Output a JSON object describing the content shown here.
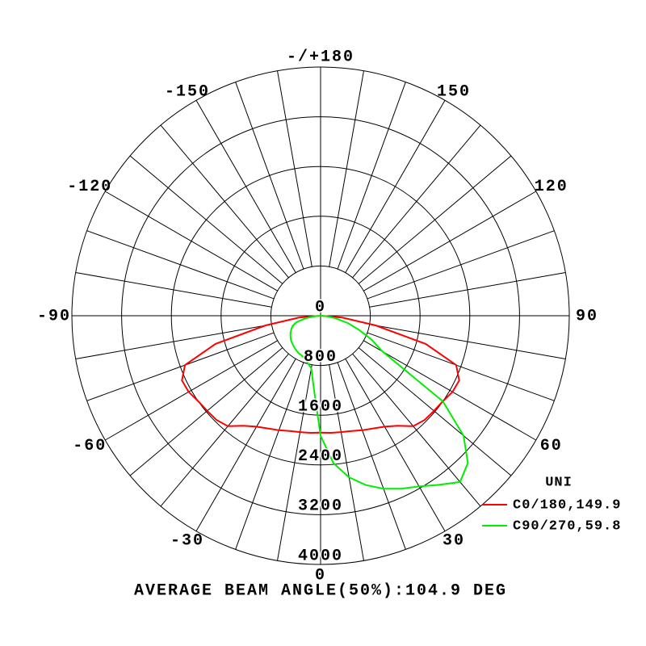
{
  "chart_data": {
    "type": "polar",
    "title": "AVERAGE BEAM ANGLE(50%):104.9 DEG",
    "angles": [
      -90,
      -85,
      -80,
      -75,
      -70,
      -65,
      -60,
      -55,
      -50,
      -45,
      -40,
      -35,
      -30,
      -25,
      -20,
      -15,
      -10,
      -5,
      0,
      5,
      10,
      15,
      20,
      25,
      30,
      35,
      40,
      45,
      50,
      55,
      60,
      65,
      70,
      75,
      80,
      85,
      90
    ],
    "series": [
      {
        "name": "C0/180,149.9",
        "color": "#ff0000",
        "values": [
          0,
          350,
          900,
          1750,
          2320,
          2460,
          2450,
          2400,
          2380,
          2370,
          2320,
          2160,
          2060,
          2000,
          1960,
          1920,
          1900,
          1890,
          1880,
          1890,
          1900,
          1920,
          1960,
          2000,
          2060,
          2160,
          2320,
          2370,
          2380,
          2400,
          2450,
          2460,
          2320,
          1750,
          900,
          350,
          0
        ]
      },
      {
        "name": "C90/270,59.8",
        "color": "#00ee00",
        "values": [
          0,
          100,
          250,
          400,
          480,
          520,
          560,
          590,
          620,
          640,
          660,
          680,
          700,
          710,
          740,
          790,
          860,
          1200,
          1930,
          2380,
          2640,
          2820,
          2960,
          3070,
          3170,
          3320,
          3490,
          3350,
          3000,
          2400,
          1150,
          900,
          650,
          450,
          250,
          100,
          0
        ]
      }
    ],
    "legend_title": "UNI",
    "rlim": [
      0,
      4000
    ],
    "rticks": [
      0,
      800,
      1600,
      2400,
      3200,
      4000
    ],
    "angle_ticks": [
      {
        "value": 180,
        "label": "-/+180"
      },
      -150,
      -120,
      -90,
      -60,
      -30,
      0,
      30,
      60,
      90,
      120,
      150
    ]
  }
}
